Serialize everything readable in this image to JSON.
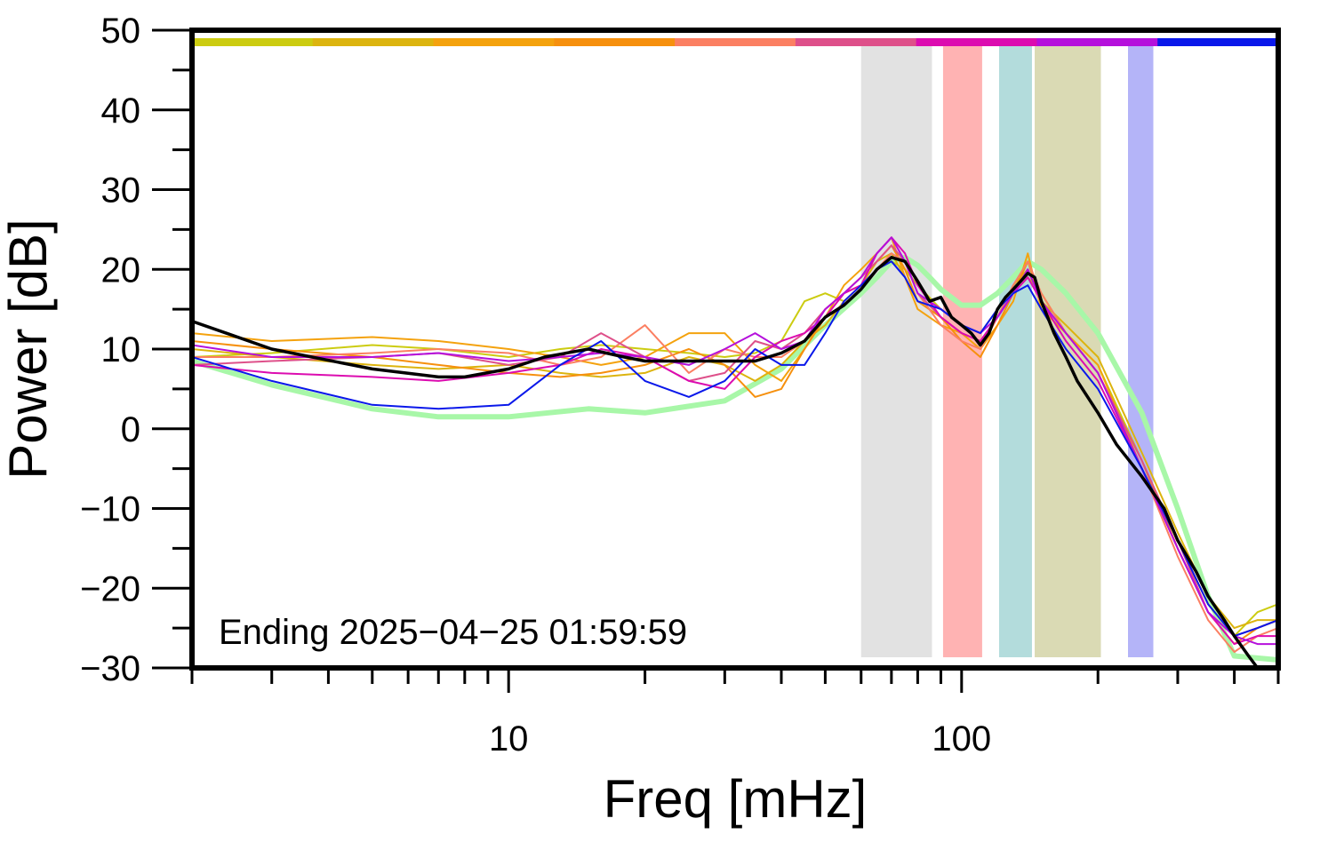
{
  "chart_data": {
    "type": "line",
    "xlabel": "Freq [mHz]",
    "ylabel": "Power [dB]",
    "xscale": "log",
    "xlim": [
      2,
      500
    ],
    "ylim": [
      -30,
      50
    ],
    "x_tick_labels": [
      "10",
      "100"
    ],
    "y_ticks": [
      50,
      40,
      30,
      20,
      10,
      0,
      -10,
      -20,
      -30
    ],
    "y_tick_labels": [
      "50",
      "40",
      "30",
      "20",
      "10",
      "0",
      "−10",
      "−20",
      "−30"
    ],
    "annotation": "Ending 2025−04−25 01:59:59",
    "grid": false,
    "bands": [
      {
        "x0": 60,
        "x1": 86,
        "color": "#e2e2e2"
      },
      {
        "x0": 91,
        "x1": 111,
        "color": "#ffb3b3"
      },
      {
        "x0": 121,
        "x1": 143,
        "color": "#b3dcdc"
      },
      {
        "x0": 145,
        "x1": 203,
        "color": "#dadab4"
      },
      {
        "x0": 233,
        "x1": 265,
        "color": "#b4b4f8"
      }
    ],
    "top_color_bar": [
      "#cccc11",
      "#dcb40f",
      "#f4a20e",
      "#f6900e",
      "#fb7f62",
      "#de508a",
      "#dc0cb0",
      "#b510dc",
      "#0a18ea"
    ],
    "series": [
      {
        "color": "#a8f7a8",
        "width": 6,
        "x": [
          2,
          3,
          5,
          7,
          10,
          15,
          20,
          30,
          40,
          50,
          60,
          65,
          70,
          75,
          80,
          85,
          90,
          100,
          110,
          120,
          130,
          140,
          150,
          170,
          200,
          250,
          300,
          350,
          400,
          500
        ],
        "y": [
          8.5,
          5.5,
          2.5,
          1.5,
          1.5,
          2.5,
          2,
          3.5,
          7.5,
          13,
          17,
          19,
          21,
          21.5,
          20.5,
          19,
          17.5,
          15.5,
          15.5,
          17,
          19,
          21,
          20,
          17,
          12,
          2,
          -10,
          -21,
          -28.5,
          -29
        ]
      },
      {
        "color": "#cccc11",
        "width": 2,
        "x": [
          2,
          3,
          5,
          7,
          10,
          13,
          16,
          20,
          25,
          30,
          35,
          40,
          45,
          50,
          55,
          60,
          65,
          70,
          75,
          80,
          90,
          100,
          110,
          120,
          130,
          140,
          150,
          170,
          200,
          250,
          300,
          350,
          400,
          450,
          500
        ],
        "y": [
          9,
          9.5,
          10.5,
          10,
          9,
          10,
          10.5,
          10,
          9.5,
          9,
          9.5,
          11,
          16,
          17,
          16,
          18,
          20,
          21,
          20,
          18,
          15,
          13,
          12,
          15,
          17,
          19,
          17,
          12,
          8,
          -4,
          -14,
          -22,
          -26,
          -23,
          -22
        ]
      },
      {
        "color": "#dcb40f",
        "width": 2,
        "x": [
          2,
          3,
          5,
          7,
          10,
          13,
          16,
          20,
          25,
          30,
          35,
          40,
          45,
          50,
          55,
          60,
          65,
          70,
          75,
          80,
          90,
          100,
          110,
          120,
          130,
          140,
          150,
          170,
          200,
          250,
          300,
          350,
          400,
          450,
          500
        ],
        "y": [
          10,
          9,
          8,
          7.5,
          8,
          7,
          6.5,
          7,
          9,
          8,
          6,
          8,
          11,
          13,
          16,
          18,
          21,
          22,
          19,
          16,
          14,
          12,
          11,
          14,
          18,
          20,
          16,
          13,
          9,
          -3,
          -13,
          -21,
          -25,
          -24,
          -24
        ]
      },
      {
        "color": "#f4a20e",
        "width": 2,
        "x": [
          2,
          3,
          5,
          7,
          10,
          13,
          16,
          20,
          25,
          30,
          35,
          40,
          45,
          50,
          55,
          60,
          65,
          70,
          75,
          80,
          90,
          100,
          110,
          120,
          130,
          140,
          150,
          170,
          200,
          250,
          300,
          350,
          400,
          450,
          500
        ],
        "y": [
          12,
          11,
          11.5,
          11,
          10,
          9,
          8,
          9,
          12,
          12,
          8,
          6,
          10,
          14,
          18,
          20,
          22,
          24,
          19,
          15,
          13,
          12,
          10,
          13,
          16,
          22,
          15,
          12,
          8,
          -5,
          -14,
          -22,
          -26,
          -25,
          -24
        ]
      },
      {
        "color": "#f6900e",
        "width": 2,
        "x": [
          2,
          3,
          5,
          7,
          10,
          13,
          16,
          20,
          25,
          30,
          35,
          40,
          45,
          50,
          55,
          60,
          65,
          70,
          75,
          80,
          90,
          100,
          110,
          120,
          130,
          140,
          150,
          170,
          200,
          250,
          300,
          350,
          400,
          450,
          500
        ],
        "y": [
          11,
          10,
          9,
          8,
          7,
          6.5,
          7,
          8,
          10,
          8,
          4,
          5,
          10,
          14,
          17,
          19,
          21,
          23,
          20,
          16,
          14,
          11,
          9,
          13,
          17,
          21,
          16,
          12,
          7,
          -4,
          -15,
          -23,
          -27,
          -25,
          -24
        ]
      },
      {
        "color": "#fb7f62",
        "width": 2,
        "x": [
          2,
          3,
          5,
          7,
          10,
          13,
          16,
          20,
          25,
          30,
          35,
          40,
          45,
          50,
          55,
          60,
          65,
          70,
          75,
          80,
          90,
          100,
          110,
          120,
          130,
          140,
          150,
          170,
          200,
          250,
          300,
          350,
          400,
          450,
          500
        ],
        "y": [
          9,
          9,
          9.5,
          10,
          9.5,
          8,
          9,
          13,
          7,
          10,
          9,
          9,
          11,
          15,
          17,
          18,
          20,
          22,
          21,
          17,
          13,
          11,
          10,
          14,
          18,
          21,
          17,
          12,
          7,
          -5,
          -16,
          -24,
          -28,
          -26,
          -25
        ]
      },
      {
        "color": "#de508a",
        "width": 2,
        "x": [
          2,
          3,
          5,
          7,
          10,
          13,
          16,
          20,
          25,
          30,
          35,
          40,
          45,
          50,
          55,
          60,
          65,
          70,
          75,
          80,
          90,
          100,
          110,
          120,
          130,
          140,
          150,
          170,
          200,
          250,
          300,
          350,
          400,
          450,
          500
        ],
        "y": [
          8,
          8.5,
          9,
          9.5,
          8,
          9,
          12,
          9,
          6,
          7,
          11,
          10,
          12,
          15,
          17,
          19,
          21,
          23,
          21,
          17,
          14,
          12,
          11,
          14,
          17,
          20,
          16,
          12,
          7,
          -4,
          -14,
          -23,
          -26,
          -25,
          -24
        ]
      },
      {
        "color": "#dc0cb0",
        "width": 2,
        "x": [
          2,
          3,
          5,
          7,
          10,
          13,
          16,
          20,
          25,
          30,
          35,
          40,
          45,
          50,
          55,
          60,
          65,
          70,
          75,
          80,
          90,
          100,
          110,
          120,
          130,
          140,
          150,
          170,
          200,
          250,
          300,
          350,
          400,
          450,
          500
        ],
        "y": [
          8,
          7,
          6.5,
          6,
          7,
          8,
          10,
          9,
          6,
          5,
          9,
          11,
          12,
          14,
          17,
          18,
          22,
          24,
          22,
          18,
          14,
          12,
          11,
          14,
          17,
          19,
          16,
          11,
          6,
          -5,
          -15,
          -23,
          -27,
          -26,
          -26
        ]
      },
      {
        "color": "#b510dc",
        "width": 2,
        "x": [
          2,
          3,
          5,
          7,
          10,
          13,
          16,
          20,
          25,
          30,
          35,
          40,
          45,
          50,
          55,
          60,
          65,
          70,
          75,
          80,
          90,
          100,
          110,
          120,
          130,
          140,
          150,
          170,
          200,
          250,
          300,
          350,
          400,
          450,
          500
        ],
        "y": [
          10.5,
          9,
          9,
          9.5,
          8.5,
          9,
          9.5,
          9,
          8,
          10,
          12,
          10,
          11,
          15,
          17,
          19,
          22,
          24,
          21,
          17,
          15,
          13,
          12,
          14,
          17,
          20,
          16,
          12,
          7,
          -5,
          -15,
          -23,
          -26,
          -27,
          -27
        ]
      },
      {
        "color": "#0a18ea",
        "width": 2,
        "x": [
          2,
          3,
          5,
          7,
          10,
          13,
          16,
          20,
          25,
          30,
          35,
          40,
          45,
          50,
          55,
          60,
          65,
          70,
          75,
          80,
          90,
          100,
          110,
          120,
          130,
          140,
          150,
          170,
          200,
          250,
          300,
          350,
          400,
          450,
          500
        ],
        "y": [
          9,
          6,
          3,
          2.5,
          3,
          8,
          11,
          6,
          4,
          6,
          10,
          8,
          8,
          12,
          16,
          18,
          20,
          21,
          19,
          16,
          15,
          13,
          12,
          15,
          17,
          18,
          15,
          10,
          5,
          -5,
          -14,
          -22,
          -26,
          -25,
          -24
        ]
      },
      {
        "color": "#000000",
        "width": 3.5,
        "x": [
          2,
          3,
          5,
          7,
          8,
          10,
          12,
          15,
          18,
          20,
          25,
          30,
          35,
          40,
          45,
          50,
          55,
          60,
          65,
          70,
          75,
          80,
          85,
          90,
          95,
          100,
          105,
          110,
          115,
          120,
          125,
          130,
          135,
          140,
          145,
          150,
          160,
          170,
          180,
          200,
          220,
          250,
          280,
          300,
          330,
          350,
          380,
          400,
          430,
          450
        ],
        "y": [
          13.5,
          10,
          7.5,
          6.5,
          6.5,
          7.5,
          9,
          10,
          9,
          8.5,
          8.5,
          8.5,
          8.5,
          9.5,
          11,
          14,
          15.5,
          17.5,
          20,
          21.5,
          21,
          18.5,
          16,
          16.5,
          14,
          13,
          12,
          10.5,
          12,
          15,
          16.5,
          17.5,
          18.5,
          19.5,
          19,
          16,
          12,
          9,
          6,
          2,
          -2,
          -6,
          -10,
          -14,
          -18,
          -21,
          -24,
          -26,
          -28.5,
          -30
        ]
      }
    ]
  }
}
